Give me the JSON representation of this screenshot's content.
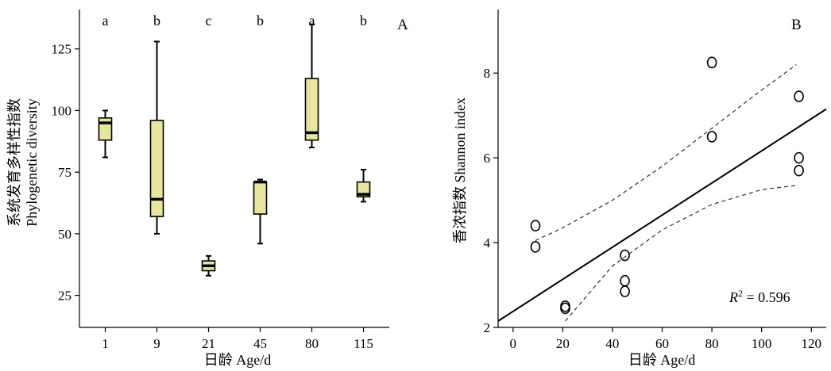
{
  "chart_data": [
    {
      "type": "box",
      "panel_label": "A",
      "xlabel": "日龄 Age/d",
      "ylabel_lines": [
        "系统发育多样性指数",
        "Phylogenetic diversity"
      ],
      "categories": [
        "1",
        "9",
        "21",
        "45",
        "80",
        "115"
      ],
      "boxes": [
        {
          "min": 81,
          "q1": 88,
          "median": 95,
          "q3": 97,
          "max": 100
        },
        {
          "min": 50,
          "q1": 57,
          "median": 64,
          "q3": 96,
          "max": 128
        },
        {
          "min": 33,
          "q1": 35,
          "median": 37,
          "q3": 39,
          "max": 41
        },
        {
          "min": 46,
          "q1": 58,
          "median": 71,
          "q3": 71,
          "max": 72
        },
        {
          "min": 85,
          "q1": 88,
          "median": 91,
          "q3": 113,
          "max": 135
        },
        {
          "min": 63,
          "q1": 65,
          "median": 66,
          "q3": 71,
          "max": 76
        }
      ],
      "significance_letters": [
        "a",
        "b",
        "c",
        "b",
        "a",
        "b"
      ],
      "yticks": [
        25,
        50,
        75,
        100,
        125
      ],
      "ylim": [
        12,
        141
      ],
      "box_color": "#e6e6a0"
    },
    {
      "type": "scatter",
      "panel_label": "B",
      "xlabel": "日龄 Age/d",
      "ylabel": "香浓指数 Shannon index",
      "points": [
        {
          "x": 9,
          "y": 4.4
        },
        {
          "x": 9,
          "y": 3.9
        },
        {
          "x": 21,
          "y": 2.45
        },
        {
          "x": 21,
          "y": 2.5
        },
        {
          "x": 45,
          "y": 3.7
        },
        {
          "x": 45,
          "y": 3.1
        },
        {
          "x": 45,
          "y": 2.85
        },
        {
          "x": 80,
          "y": 8.25
        },
        {
          "x": 80,
          "y": 6.5
        },
        {
          "x": 115,
          "y": 7.45
        },
        {
          "x": 115,
          "y": 6.0
        },
        {
          "x": 115,
          "y": 5.7
        }
      ],
      "fit_line": {
        "x": [
          -6,
          126
        ],
        "y": [
          2.15,
          7.15
        ]
      },
      "ci_upper": {
        "x": [
          9,
          20,
          40,
          60,
          80,
          100,
          114
        ],
        "y": [
          4.05,
          4.35,
          5.0,
          5.8,
          6.7,
          7.6,
          8.2
        ]
      },
      "ci_lower": {
        "x": [
          21,
          40,
          60,
          80,
          100,
          114
        ],
        "y": [
          2.15,
          3.45,
          4.3,
          4.9,
          5.25,
          5.35
        ]
      },
      "r2_label": "R",
      "r2_sup": "2",
      "r2_value": " = 0.596",
      "xticks": [
        0,
        20,
        40,
        60,
        80,
        100,
        120
      ],
      "yticks": [
        2,
        4,
        6,
        8
      ],
      "xlim": [
        -6,
        126
      ],
      "ylim": [
        2.0,
        9.5
      ]
    }
  ]
}
